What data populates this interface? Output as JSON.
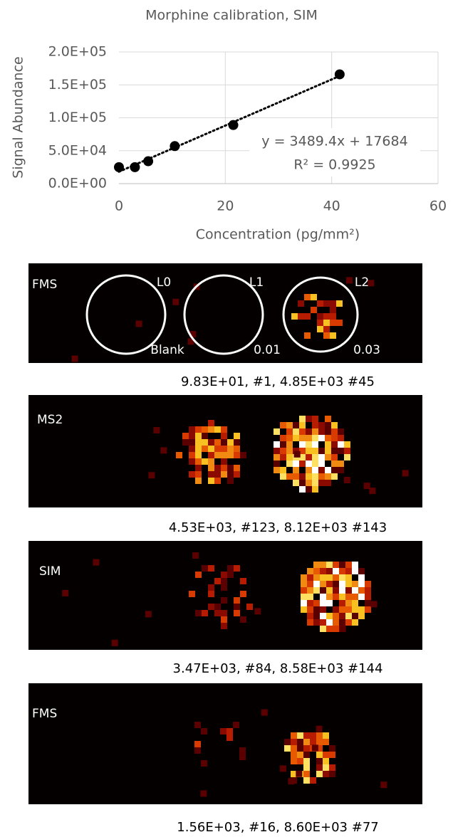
{
  "chart_data": {
    "type": "scatter",
    "title": "Morphine calibration, SIM",
    "xlabel": "Concentration (pg/mm²)",
    "ylabel": "Signal Abundance",
    "x": [
      0,
      3,
      5.5,
      10.5,
      21.5,
      41.5
    ],
    "values": [
      25000,
      25000,
      34000,
      57000,
      89000,
      166000
    ],
    "color": "#000000",
    "xlim": [
      0,
      60
    ],
    "xticks": [
      0,
      20,
      40,
      60
    ],
    "ylim": [
      0,
      200000
    ],
    "yticks": [
      {
        "value": 0,
        "label": "0.0E+00"
      },
      {
        "value": 50000,
        "label": "5.0E+04"
      },
      {
        "value": 100000,
        "label": "1.0E+05"
      },
      {
        "value": 150000,
        "label": "1.5E+05"
      },
      {
        "value": 200000,
        "label": "2.0E+05"
      }
    ],
    "grid": true,
    "trendline": {
      "equation": "y = 3489.4x + 17684",
      "r2": "R² = 0.9925"
    }
  },
  "panels": [
    {
      "label": "FMS",
      "circles": [
        {
          "label": "L0",
          "note": "Blank"
        },
        {
          "label": "L1",
          "note": "0.01"
        },
        {
          "label": "L2",
          "note": "0.03"
        }
      ],
      "caption": "9.83E+01, #1,  4.85E+03 #45"
    },
    {
      "label": "MS2",
      "caption": "4.53E+03, #123,   8.12E+03 #143"
    },
    {
      "label": "SIM",
      "caption": "3.47E+03, #84,   8.58E+03 #144"
    },
    {
      "label": "FMS",
      "caption": "1.56E+03, #16,   8.60E+03 #77"
    }
  ]
}
